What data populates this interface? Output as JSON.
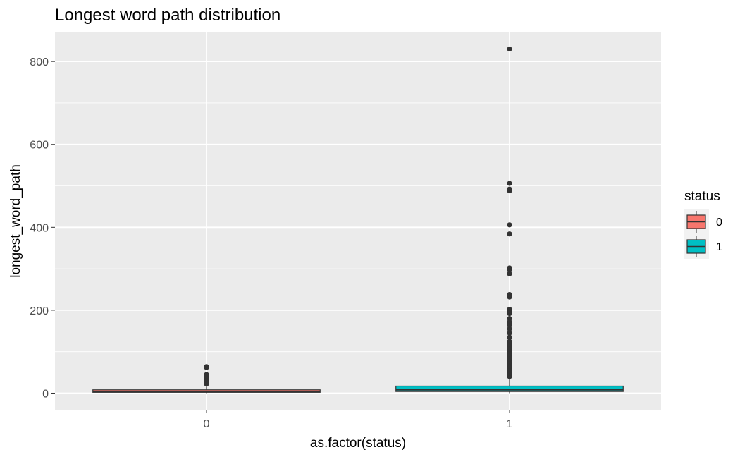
{
  "chart_data": {
    "type": "boxplot",
    "title": "Longest word path distribution",
    "xlabel": "as.factor(status)",
    "ylabel": "longest_word_path",
    "ylim": [
      -40,
      870
    ],
    "y_ticks": [
      0,
      200,
      400,
      600,
      800
    ],
    "categories": [
      "0",
      "1"
    ],
    "grid": true,
    "legend": {
      "title": "status",
      "position": "right",
      "entries": [
        "0",
        "1"
      ]
    },
    "colors": {
      "0": "#F8766D",
      "1": "#00BFC4",
      "panel": "#EBEBEB",
      "grid": "#FFFFFF",
      "outline": "#333333"
    },
    "boxes": [
      {
        "category": "0",
        "min": 0,
        "q1": 2,
        "median": 4,
        "q3": 8,
        "max": 16,
        "outliers": [
          22,
          26,
          29,
          32,
          35,
          41,
          45,
          62,
          64
        ]
      },
      {
        "category": "1",
        "min": 0,
        "q1": 4,
        "median": 8,
        "q3": 17,
        "max": 37,
        "outliers": [
          40,
          42,
          45,
          48,
          50,
          53,
          55,
          58,
          60,
          63,
          65,
          68,
          72,
          75,
          78,
          82,
          86,
          90,
          95,
          100,
          105,
          110,
          118,
          125,
          135,
          145,
          155,
          165,
          172,
          180,
          192,
          198,
          202,
          232,
          238,
          288,
          298,
          302,
          384,
          406,
          488,
          492,
          506,
          830
        ]
      }
    ]
  }
}
